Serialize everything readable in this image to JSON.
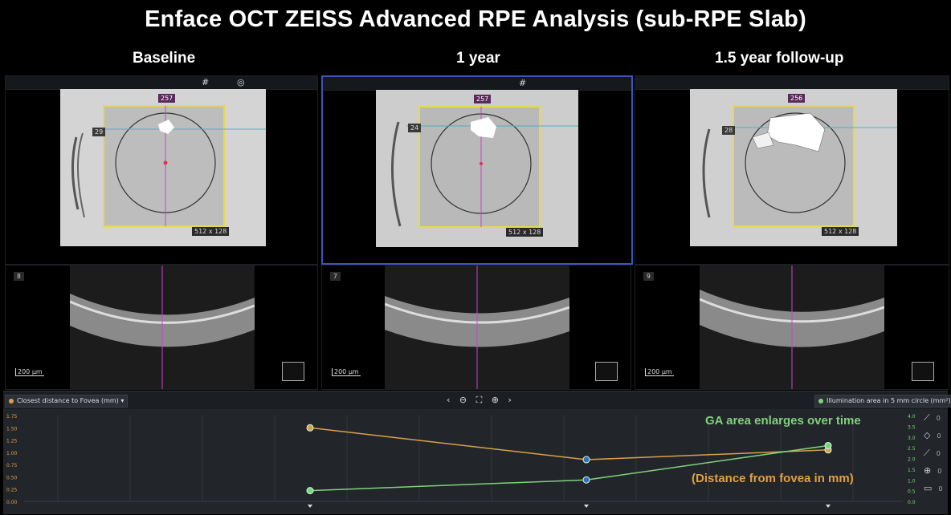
{
  "title": "Enface OCT ZEISS Advanced RPE Analysis (sub-RPE Slab)",
  "columns": [
    {
      "label": "Baseline",
      "enface": {
        "top_value": "257",
        "left_value": "29",
        "dimension": "512 x 128"
      },
      "bscan": {
        "slice": "8",
        "scale": "200 μm"
      }
    },
    {
      "label": "1 year",
      "enface": {
        "top_value": "257",
        "left_value": "24",
        "dimension": "512 x 128"
      },
      "bscan": {
        "slice": "7",
        "scale": "200 μm"
      }
    },
    {
      "label": "1.5 year follow-up",
      "enface": {
        "top_value": "256",
        "left_value": "28",
        "dimension": "512 x 128"
      },
      "bscan": {
        "slice": "9",
        "scale": "200 μm"
      }
    }
  ],
  "icons": {
    "grid": "grid-icon",
    "target": "target-icon",
    "nt": "nasal-temporal-orientation-icon"
  },
  "bottom": {
    "left_dropdown": "Closest distance to Fovea (mm)",
    "right_dropdown": "Illumination area in 5 mm circle (mm²)",
    "left_axis_ticks": [
      "1.75",
      "1.50",
      "1.25",
      "1.00",
      "0.75",
      "0.50",
      "0.25",
      "0.00"
    ],
    "right_axis_ticks": [
      "4.0",
      "3.5",
      "3.0",
      "2.5",
      "2.0",
      "1.5",
      "1.0",
      "0.5",
      "0.0"
    ],
    "side_tool_values": [
      "0",
      "0",
      "0",
      "0",
      "0"
    ],
    "annotation_green": "GA area enlarges over time",
    "annotation_orange": "(Distance from fovea in mm)"
  },
  "colors": {
    "selected_panel": "#3b55b8",
    "roi_box": "#e8d84a",
    "scan_line": "#d040d0",
    "series_distance": "#d9a04a",
    "series_area": "#7fd27a",
    "marker_blue": "#3b6fb0"
  },
  "chart_data": {
    "type": "line",
    "x": [
      "Baseline",
      "1 year",
      "1.5 year follow-up"
    ],
    "series": [
      {
        "name": "Closest distance to Fovea (mm)",
        "axis": "left",
        "values": [
          1.5,
          0.85,
          1.05
        ]
      },
      {
        "name": "Illumination area in 5 mm circle (mm²)",
        "axis": "right",
        "values": [
          0.5,
          1.0,
          2.6
        ]
      }
    ],
    "ylim_left": [
      0,
      1.75
    ],
    "ylim_right": [
      0,
      4.0
    ]
  }
}
